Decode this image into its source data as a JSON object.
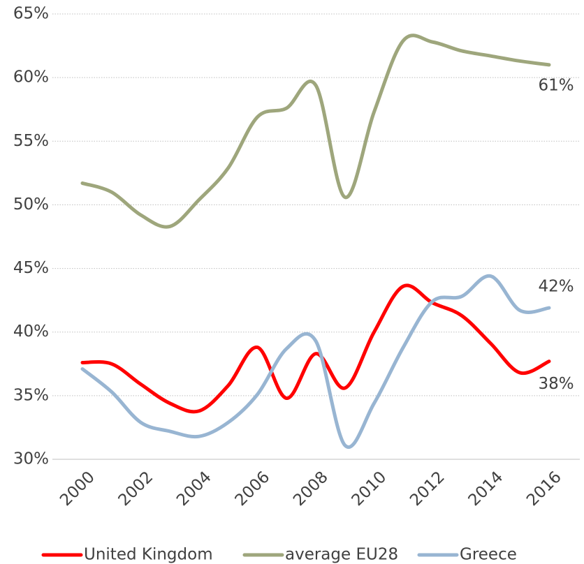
{
  "chart_data": {
    "type": "line",
    "x": [
      2000,
      2001,
      2002,
      2003,
      2004,
      2005,
      2006,
      2007,
      2008,
      2009,
      2010,
      2011,
      2012,
      2013,
      2014,
      2015,
      2016
    ],
    "xlim": [
      2000,
      2016
    ],
    "xticks": [
      2000,
      2002,
      2004,
      2006,
      2008,
      2010,
      2012,
      2014,
      2016
    ],
    "ylim": [
      30,
      65
    ],
    "yticks": [
      {
        "value": 30,
        "label": "30%"
      },
      {
        "value": 35,
        "label": "35%"
      },
      {
        "value": 40,
        "label": "40%"
      },
      {
        "value": 45,
        "label": "45%"
      },
      {
        "value": 50,
        "label": "50%"
      },
      {
        "value": 55,
        "label": "55%"
      },
      {
        "value": 60,
        "label": "60%"
      },
      {
        "value": 65,
        "label": "65%"
      }
    ],
    "grid": true,
    "legend": "bottom",
    "series": [
      {
        "name": "United Kingdom",
        "color": "#ff0000",
        "values": [
          37.6,
          37.5,
          35.9,
          34.4,
          33.8,
          35.8,
          38.8,
          34.8,
          38.3,
          35.6,
          40.0,
          43.6,
          42.3,
          41.3,
          39.1,
          36.8,
          37.7
        ],
        "value_labels": [
          null,
          null,
          null,
          null,
          null,
          null,
          null,
          null,
          null,
          null,
          null,
          null,
          null,
          null,
          null,
          null,
          "38%"
        ]
      },
      {
        "name": "average EU28",
        "color": "#9ea67c",
        "values": [
          51.7,
          51.0,
          49.2,
          48.3,
          50.4,
          52.9,
          56.9,
          57.6,
          59.4,
          50.6,
          57.3,
          62.9,
          62.8,
          62.1,
          61.7,
          61.3,
          61.0
        ],
        "value_labels": [
          null,
          null,
          null,
          null,
          null,
          null,
          null,
          null,
          null,
          null,
          null,
          null,
          null,
          null,
          null,
          null,
          "61%"
        ]
      },
      {
        "name": "Greece",
        "color": "#98b5d2",
        "values": [
          37.1,
          35.3,
          32.9,
          32.2,
          31.8,
          32.9,
          35.1,
          38.7,
          39.3,
          31.1,
          34.4,
          38.8,
          42.4,
          42.8,
          44.4,
          41.7,
          41.9
        ],
        "value_labels": [
          null,
          null,
          null,
          null,
          null,
          null,
          null,
          null,
          null,
          null,
          null,
          null,
          null,
          null,
          null,
          null,
          "42%"
        ]
      }
    ]
  }
}
